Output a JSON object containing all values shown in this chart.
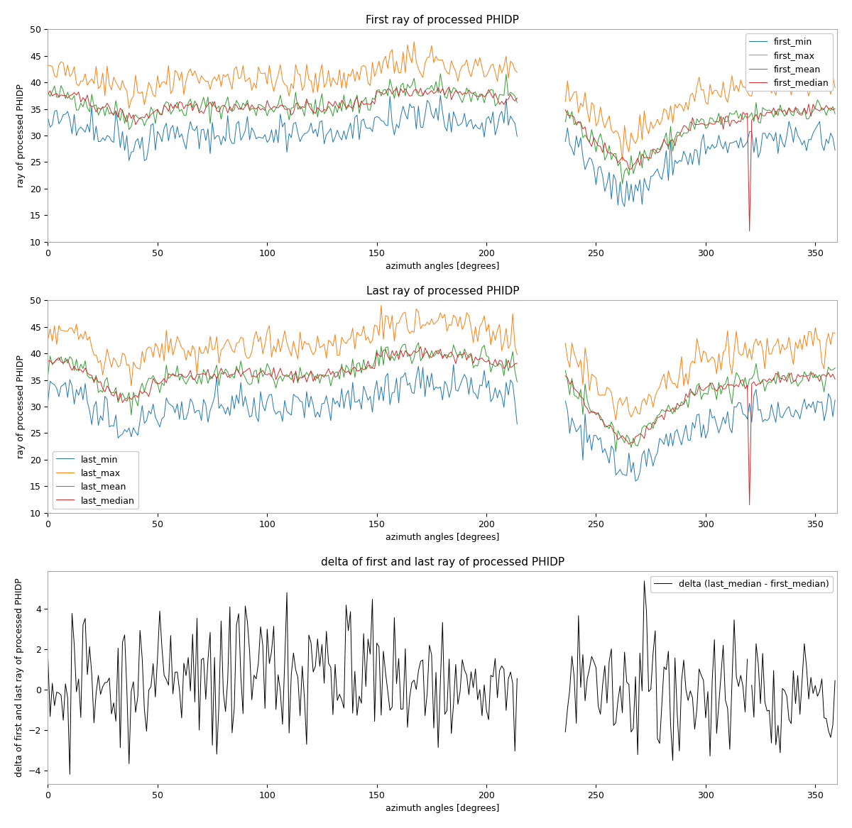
{
  "title1": "First ray of processed PHIDP",
  "title2": "Last ray of processed PHIDP",
  "title3": "delta of first and last ray of processed PHIDP",
  "xlabel": "azimuth angles [degrees]",
  "ylabel1": "ray of processed PHIDP",
  "ylabel2": "ray of processed PHIDP",
  "ylabel3": "delta of first and last ray of processed PHIDP",
  "ylim1": [
    10,
    50
  ],
  "ylim2": [
    10,
    50
  ],
  "colors": {
    "min": "#1f77b4",
    "max": "#ff7f0e",
    "mean": "#2ca02c",
    "median": "#d62728",
    "delta": "#000000"
  },
  "legend1": [
    "first_min",
    "first_max",
    "first_mean",
    "first_median"
  ],
  "legend2": [
    "last_min",
    "last_max",
    "last_mean",
    "last_median"
  ],
  "legend3": [
    "delta (last_median - first_median)"
  ],
  "figsize": [
    12.0,
    11.67
  ],
  "dpi": 100
}
